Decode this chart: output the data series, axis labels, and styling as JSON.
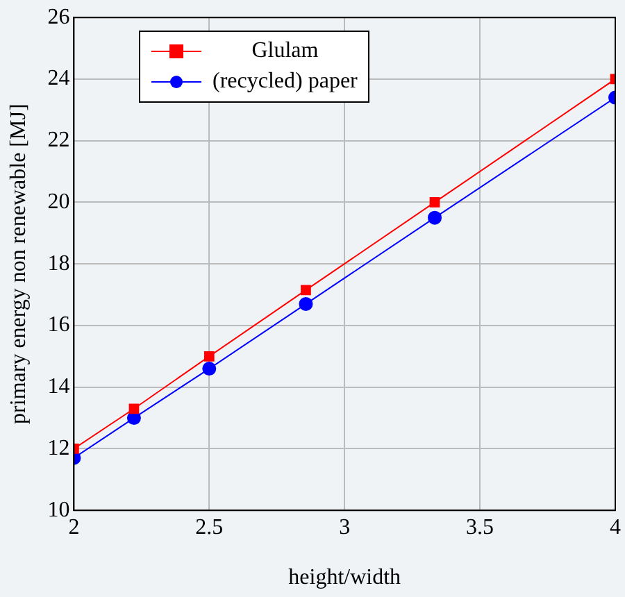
{
  "chart_data": {
    "type": "line",
    "xlabel": "height/width",
    "ylabel": "primary energy non renewable [MJ]",
    "x": [
      2,
      2.222,
      2.5,
      2.857,
      3.333,
      4
    ],
    "series": [
      {
        "name": "Glulam",
        "color": "#ff0000",
        "marker": "square",
        "values": [
          12,
          13.3,
          15,
          17.15,
          20,
          24
        ]
      },
      {
        "name": "(recycled) paper",
        "color": "#0000ff",
        "marker": "circle",
        "values": [
          11.7,
          13,
          14.6,
          16.7,
          19.5,
          23.4
        ]
      }
    ],
    "xlim": [
      2,
      4
    ],
    "xticks": [
      2,
      2.5,
      3,
      3.5,
      4
    ],
    "ylim": [
      10,
      26
    ],
    "yticks": [
      10,
      12,
      14,
      16,
      18,
      20,
      22,
      24,
      26
    ],
    "grid": true,
    "legend": "top left",
    "line_style": "solid"
  }
}
